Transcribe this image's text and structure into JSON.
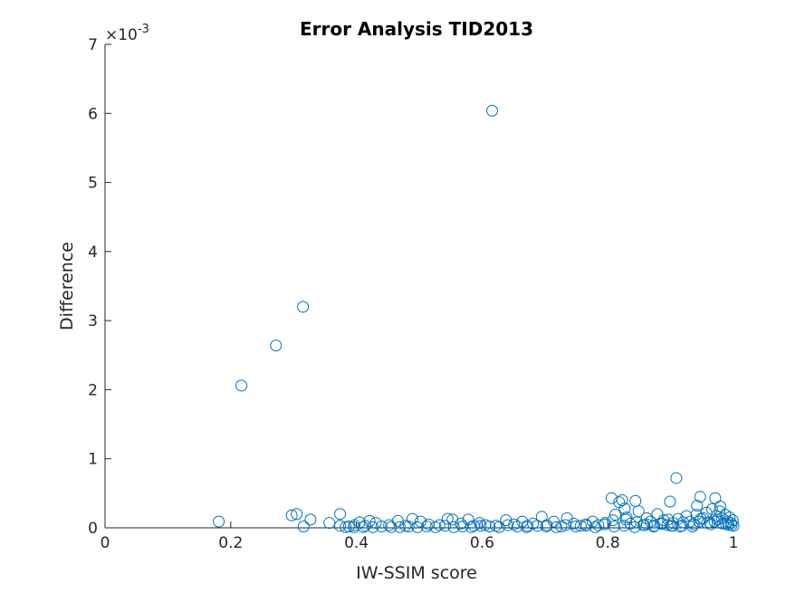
{
  "chart_data": {
    "type": "scatter",
    "title": "Error Analysis TID2013",
    "xlabel": "IW-SSIM score",
    "ylabel": "Difference",
    "xlim": [
      0,
      1
    ],
    "ylim": [
      0,
      0.007
    ],
    "x_ticks": [
      0,
      0.2,
      0.4,
      0.6,
      0.8,
      1
    ],
    "x_tick_labels": [
      "0",
      "0.2",
      "0.4",
      "0.6",
      "0.8",
      "1"
    ],
    "y_ticks": [
      0,
      0.001,
      0.002,
      0.003,
      0.004,
      0.005,
      0.006,
      0.007
    ],
    "y_tick_labels": [
      "0",
      "1",
      "2",
      "3",
      "4",
      "5",
      "6",
      "7"
    ],
    "y_exponent_base": "×10",
    "y_exponent_power": "-3",
    "grid": false,
    "marker": "open-circle",
    "marker_color": "#0072BD",
    "series": [
      {
        "x": [
          0.616,
          0.315,
          0.272,
          0.217,
          0.909,
          0.181,
          0.297,
          0.305,
          0.327,
          0.374,
          0.357,
          0.316,
          0.374,
          0.388,
          0.397,
          0.405,
          0.414,
          0.421,
          0.431,
          0.452,
          0.466,
          0.478,
          0.489,
          0.502,
          0.515,
          0.532,
          0.545,
          0.553,
          0.566,
          0.578,
          0.587,
          0.596,
          0.605,
          0.622,
          0.638,
          0.651,
          0.664,
          0.672,
          0.681,
          0.695,
          0.703,
          0.714,
          0.726,
          0.735,
          0.746,
          0.757,
          0.765,
          0.776,
          0.785,
          0.796,
          0.806,
          0.812,
          0.818,
          0.823,
          0.829,
          0.836,
          0.844,
          0.849,
          0.856,
          0.862,
          0.868,
          0.874,
          0.879,
          0.884,
          0.889,
          0.895,
          0.899,
          0.904,
          0.912,
          0.918,
          0.925,
          0.931,
          0.937,
          0.942,
          0.947,
          0.952,
          0.957,
          0.962,
          0.966,
          0.971,
          0.975,
          0.979,
          0.983,
          0.987,
          0.991,
          0.994,
          0.997,
          0.999,
          1.0,
          0.978,
          0.964,
          0.948,
          0.935,
          0.92,
          0.901,
          0.887,
          0.873,
          0.858,
          0.843,
          0.826,
          0.81,
          0.795,
          0.78,
          0.766,
          0.749,
          0.733,
          0.718,
          0.702,
          0.688,
          0.671,
          0.656,
          0.641,
          0.627,
          0.612,
          0.598,
          0.583,
          0.569,
          0.555,
          0.541,
          0.526,
          0.512,
          0.497,
          0.483,
          0.469,
          0.455,
          0.44,
          0.426,
          0.411,
          0.396,
          0.383,
          0.83,
          0.846,
          0.808,
          0.827,
          0.958,
          0.973,
          0.988,
          0.896,
          0.941,
          0.97,
          0.992,
          0.996,
          0.982,
          0.915,
          0.862,
          0.945,
          0.903
        ],
        "y": [
          0.00604,
          0.0032,
          0.00264,
          0.00206,
          0.00072,
          9e-05,
          0.00018,
          0.0002,
          0.00012,
          0.0002,
          7e-05,
          2e-05,
          3e-05,
          2e-05,
          4e-05,
          8e-05,
          3e-05,
          0.0001,
          7e-05,
          4e-05,
          0.0001,
          3e-05,
          0.00013,
          9e-05,
          5e-05,
          4e-05,
          0.00013,
          0.00012,
          6e-05,
          0.00012,
          3e-05,
          7e-05,
          4e-05,
          3e-05,
          0.00011,
          5e-05,
          9e-05,
          3e-05,
          6e-05,
          0.00016,
          4e-05,
          9e-05,
          2e-05,
          0.00014,
          6e-05,
          3e-05,
          5e-05,
          9e-05,
          4e-05,
          7e-05,
          0.00043,
          0.00019,
          0.00037,
          0.0004,
          0.00012,
          6e-05,
          0.00039,
          0.00024,
          4e-05,
          0.00014,
          9e-05,
          3e-05,
          0.0002,
          6e-05,
          0.00011,
          4e-05,
          0.00038,
          7e-05,
          0.00013,
          3e-05,
          0.00017,
          9e-05,
          5e-05,
          0.00032,
          0.00045,
          0.00014,
          0.00022,
          8e-05,
          0.00027,
          0.00043,
          0.00012,
          0.00031,
          6e-05,
          0.00019,
          9e-05,
          0.00015,
          4e-05,
          0.00011,
          3e-05,
          0.00024,
          5e-05,
          0.00013,
          2e-05,
          8e-05,
          3e-05,
          6e-05,
          2e-05,
          4e-05,
          1e-05,
          3e-05,
          2e-05,
          5e-05,
          1e-05,
          3e-05,
          2e-05,
          4e-05,
          1e-05,
          2e-05,
          3e-05,
          1e-05,
          2e-05,
          4e-05,
          1e-05,
          2e-05,
          3e-05,
          1e-05,
          2e-05,
          1e-05,
          3e-05,
          1e-05,
          2e-05,
          1e-05,
          2e-05,
          1e-05,
          1e-05,
          2e-05,
          1e-05,
          1e-05,
          1e-05,
          1e-05,
          0.00015,
          8e-05,
          0.00011,
          0.00028,
          7e-05,
          0.00017,
          6e-05,
          0.00012,
          0.00019,
          9e-05,
          4e-05,
          7e-05,
          0.00014,
          2e-05,
          5e-05,
          9e-05,
          3e-05
        ]
      }
    ]
  }
}
